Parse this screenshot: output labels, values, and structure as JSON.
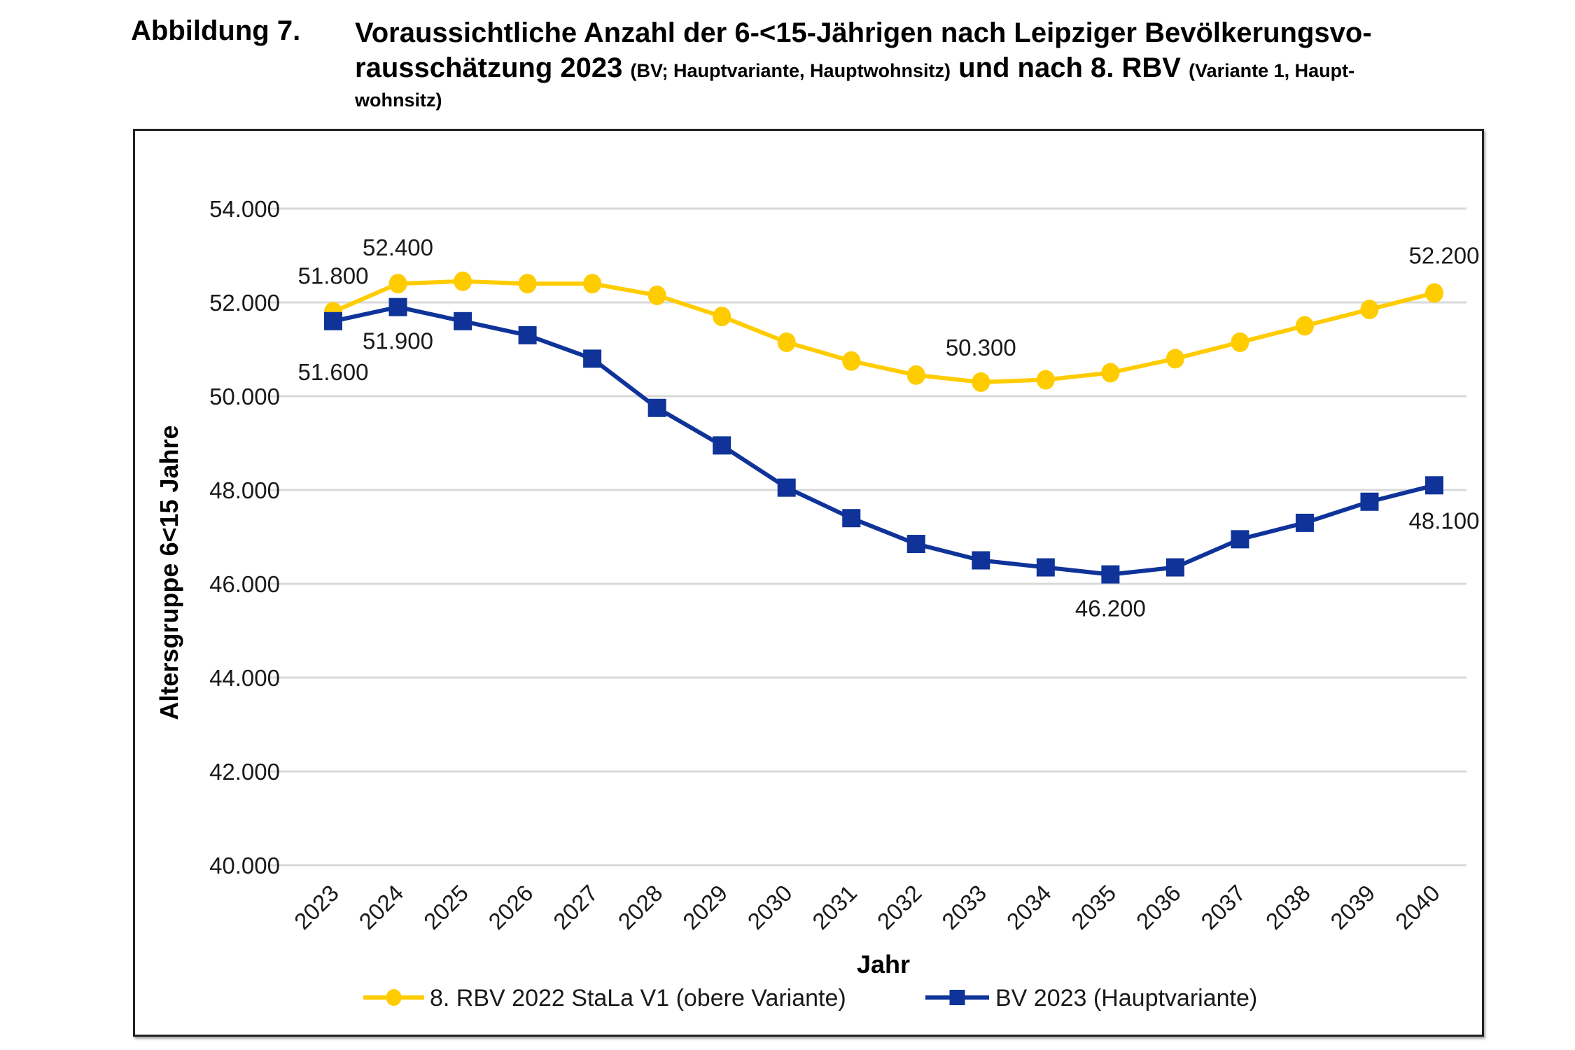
{
  "figure": {
    "label": "Abbildung 7.",
    "title_line1": "Voraussichtliche Anzahl der 6-<15-Jährigen nach Leipziger Bevölkerungsvo-",
    "title_line2_a": "rausschätzung 2023 ",
    "title_line2_b": "(BV; Hauptvariante, Hauptwohnsitz)",
    "title_line2_c": " und nach 8. RBV ",
    "title_line2_d": "(Variante 1, Haupt-",
    "title_line3": "wohnsitz)"
  },
  "chart_data": {
    "type": "line",
    "title": "Voraussichtliche Anzahl der 6-<15-Jährigen nach Leipziger Bevölkerungsvorausschätzung 2023 (BV; Hauptvariante, Hauptwohnsitz) und nach 8. RBV (Variante 1, Hauptwohnsitz)",
    "xlabel": "Jahr",
    "ylabel": "Altersgruppe 6<15 Jahre",
    "ylim": [
      40000,
      54000
    ],
    "yticks": [
      40000,
      42000,
      44000,
      46000,
      48000,
      50000,
      52000,
      54000
    ],
    "ytick_labels": [
      "40.000",
      "42.000",
      "44.000",
      "46.000",
      "48.000",
      "50.000",
      "52.000",
      "54.000"
    ],
    "grid": "horizontal",
    "legend_position": "bottom",
    "categories": [
      "2023",
      "2024",
      "2025",
      "2026",
      "2027",
      "2028",
      "2029",
      "2030",
      "2031",
      "2032",
      "2033",
      "2034",
      "2035",
      "2036",
      "2037",
      "2038",
      "2039",
      "2040"
    ],
    "series": [
      {
        "name": "8. RBV 2022 StaLa V1 (obere Variante)",
        "color": "#FFCC00",
        "marker": "circle",
        "values": [
          51800,
          52400,
          52450,
          52400,
          52400,
          52150,
          51700,
          51150,
          50750,
          50450,
          50300,
          50350,
          50500,
          50800,
          51150,
          51500,
          51850,
          52200
        ],
        "data_labels": [
          {
            "index": 0,
            "text": "51.800",
            "position": "above"
          },
          {
            "index": 1,
            "text": "52.400",
            "position": "above"
          },
          {
            "index": 10,
            "text": "50.300",
            "position": "above"
          },
          {
            "index": 17,
            "text": "52.200",
            "position": "above"
          }
        ]
      },
      {
        "name": "BV 2023 (Hauptvariante)",
        "color": "#0F3399",
        "marker": "square",
        "values": [
          51600,
          51900,
          51600,
          51300,
          50800,
          49750,
          48950,
          48050,
          47400,
          46850,
          46500,
          46350,
          46200,
          46350,
          46950,
          47300,
          47750,
          48100
        ],
        "data_labels": [
          {
            "index": 0,
            "text": "51.600",
            "position": "below"
          },
          {
            "index": 1,
            "text": "51.900",
            "position": "below"
          },
          {
            "index": 12,
            "text": "46.200",
            "position": "below"
          },
          {
            "index": 17,
            "text": "48.100",
            "position": "below"
          }
        ]
      }
    ]
  }
}
